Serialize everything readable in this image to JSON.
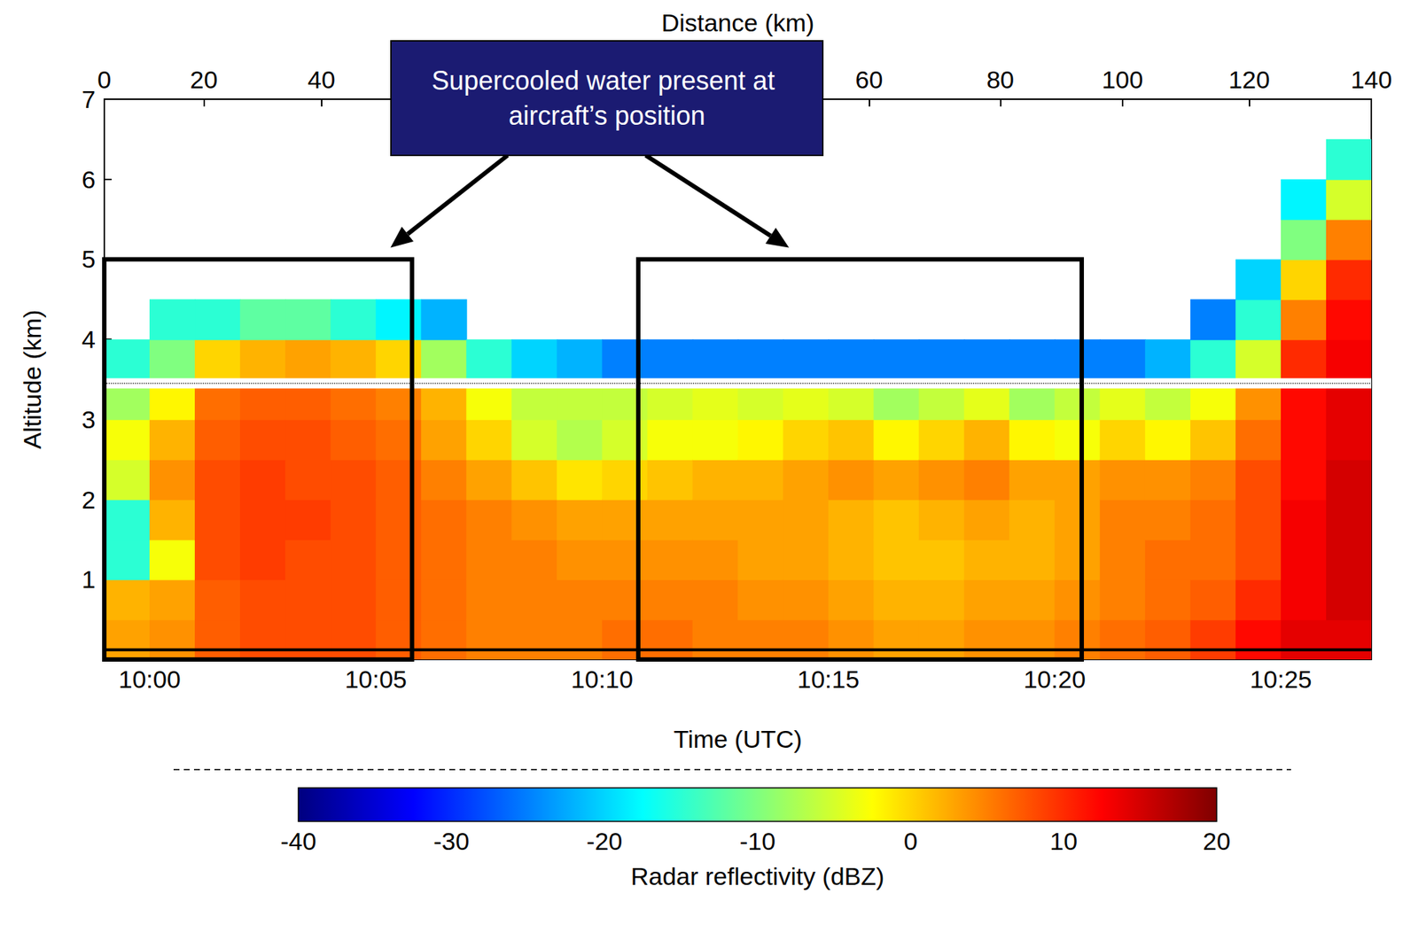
{
  "chart_data": {
    "type": "heatmap",
    "x_label": "Time (UTC)",
    "x2_label": "Distance (km)",
    "y_label": "Altitude (km)",
    "xlim": [
      599,
      627
    ],
    "xticks": [
      {
        "value": 600,
        "label": "10:00"
      },
      {
        "value": 605,
        "label": "10:05"
      },
      {
        "value": 610,
        "label": "10:10"
      },
      {
        "value": 615,
        "label": "10:15"
      },
      {
        "value": 620,
        "label": "10:20"
      },
      {
        "value": 625,
        "label": "10:25"
      }
    ],
    "x2ticks": [
      {
        "value": 599,
        "label": "0"
      },
      {
        "value": 601.2,
        "label": "20"
      },
      {
        "value": 603.8,
        "label": "40"
      },
      {
        "value": 615.9,
        "label": "60"
      },
      {
        "value": 618.8,
        "label": "80"
      },
      {
        "value": 621.5,
        "label": "100"
      },
      {
        "value": 624.3,
        "label": "120"
      },
      {
        "value": 627,
        "label": "140"
      }
    ],
    "ylim": [
      0,
      7
    ],
    "yticks": [
      1,
      2,
      3,
      4,
      5,
      6,
      7
    ],
    "cells": {
      "x": [
        599.5,
        600.5,
        601.5,
        602.5,
        603.5,
        604.5,
        605.5,
        606.5,
        607.5,
        608.5,
        609.5,
        610.5,
        611.5,
        612.5,
        613.5,
        614.5,
        615.5,
        616.5,
        617.5,
        618.5,
        619.5,
        620.5,
        621.5,
        622.5,
        623.5,
        624.5,
        625.5,
        626.5
      ],
      "y": [
        0.25,
        0.75,
        1.25,
        1.75,
        2.25,
        2.75,
        3.25,
        3.75,
        4.25,
        4.75,
        5.25,
        5.75,
        6.25,
        6.75
      ],
      "values": [
        [
          3,
          2,
          -15,
          -15,
          -5,
          -3,
          -8,
          -15,
          null,
          null,
          null,
          null,
          null,
          null
        ],
        [
          4,
          3,
          -3,
          2,
          4,
          2,
          -2,
          -10,
          -15,
          null,
          null,
          null,
          null,
          null
        ],
        [
          7,
          7,
          8,
          8,
          8,
          7,
          6,
          0,
          -15,
          null,
          null,
          null,
          null,
          null
        ],
        [
          8,
          8,
          9,
          9,
          9,
          8,
          7,
          2,
          -12,
          null,
          null,
          null,
          null,
          null
        ],
        [
          8,
          8,
          8,
          9,
          8,
          8,
          7,
          3,
          -12,
          null,
          null,
          null,
          null,
          null
        ],
        [
          8,
          8,
          8,
          8,
          8,
          7,
          6,
          2,
          -15,
          null,
          null,
          null,
          null,
          null
        ],
        [
          7,
          7,
          7,
          7,
          7,
          6,
          5,
          0,
          -18,
          null,
          null,
          null,
          null,
          null
        ],
        [
          6,
          6,
          6,
          6,
          5,
          3,
          2,
          -8,
          -22,
          null,
          null,
          null,
          null,
          null
        ],
        [
          5,
          5,
          5,
          5,
          3,
          0,
          -3,
          -15,
          null,
          null,
          null,
          null,
          null,
          null
        ],
        [
          5,
          5,
          5,
          4,
          1,
          -5,
          -6,
          -20,
          null,
          null,
          null,
          null,
          null,
          null
        ],
        [
          5,
          5,
          4,
          3,
          -1,
          -7,
          -6,
          -22,
          null,
          null,
          null,
          null,
          null,
          null
        ],
        [
          6,
          5,
          4,
          3,
          0,
          -5,
          -6,
          -25,
          null,
          null,
          null,
          null,
          null,
          null
        ],
        [
          6,
          5,
          4,
          3,
          1,
          -3,
          -5,
          -25,
          null,
          null,
          null,
          null,
          null,
          null
        ],
        [
          5,
          5,
          4,
          3,
          2,
          -3,
          -4,
          -25,
          null,
          null,
          null,
          null,
          null,
          null
        ],
        [
          5,
          4,
          3,
          3,
          2,
          -2,
          -5,
          -25,
          null,
          null,
          null,
          null,
          null,
          null
        ],
        [
          5,
          4,
          3,
          3,
          3,
          0,
          -4,
          -25,
          null,
          null,
          null,
          null,
          null,
          null
        ],
        [
          4,
          3,
          2,
          2,
          4,
          1,
          -5,
          -25,
          null,
          null,
          null,
          null,
          null,
          null
        ],
        [
          3,
          2,
          1,
          1,
          3,
          -2,
          -8,
          -25,
          null,
          null,
          null,
          null,
          null,
          null
        ],
        [
          3,
          2,
          1,
          2,
          4,
          0,
          -6,
          -25,
          null,
          null,
          null,
          null,
          null,
          null
        ],
        [
          4,
          3,
          2,
          3,
          5,
          2,
          -4,
          -25,
          null,
          null,
          null,
          null,
          null,
          null
        ],
        [
          4,
          3,
          2,
          2,
          3,
          -2,
          -8,
          -25,
          null,
          null,
          null,
          null,
          null,
          null
        ],
        [
          5,
          4,
          3,
          3,
          3,
          -3,
          -6,
          -25,
          null,
          null,
          null,
          null,
          null,
          null
        ],
        [
          6,
          5,
          5,
          5,
          4,
          0,
          -4,
          -25,
          null,
          null,
          null,
          null,
          null,
          null
        ],
        [
          7,
          6,
          6,
          5,
          4,
          -2,
          -6,
          -22,
          null,
          null,
          null,
          null,
          null,
          null
        ],
        [
          9,
          7,
          6,
          6,
          5,
          1,
          -3,
          -15,
          -25,
          null,
          null,
          null,
          null,
          null
        ],
        [
          12,
          10,
          8,
          8,
          8,
          6,
          4,
          -5,
          -15,
          -20,
          null,
          null,
          null,
          null
        ],
        [
          14,
          13,
          13,
          13,
          12,
          12,
          12,
          10,
          5,
          0,
          -10,
          -18,
          null,
          null
        ],
        [
          14,
          15,
          15,
          15,
          15,
          14,
          14,
          13,
          12,
          10,
          5,
          -5,
          -15,
          null
        ]
      ]
    },
    "colorbar": {
      "label": "Radar reflectivity (dBZ)",
      "range": [
        -40,
        20
      ],
      "ticks": [
        -40,
        -30,
        -20,
        -10,
        0,
        10,
        20
      ]
    },
    "flight_altitude": 3.45,
    "ground_altitude": 0.12,
    "annotation": {
      "text": "Supercooled water present at aircraft’s position",
      "boxes": [
        {
          "x": [
            599,
            605.8
          ],
          "y": [
            0,
            5
          ]
        },
        {
          "x": [
            610.8,
            620.6
          ],
          "y": [
            0,
            5
          ]
        }
      ]
    },
    "grid": false
  }
}
